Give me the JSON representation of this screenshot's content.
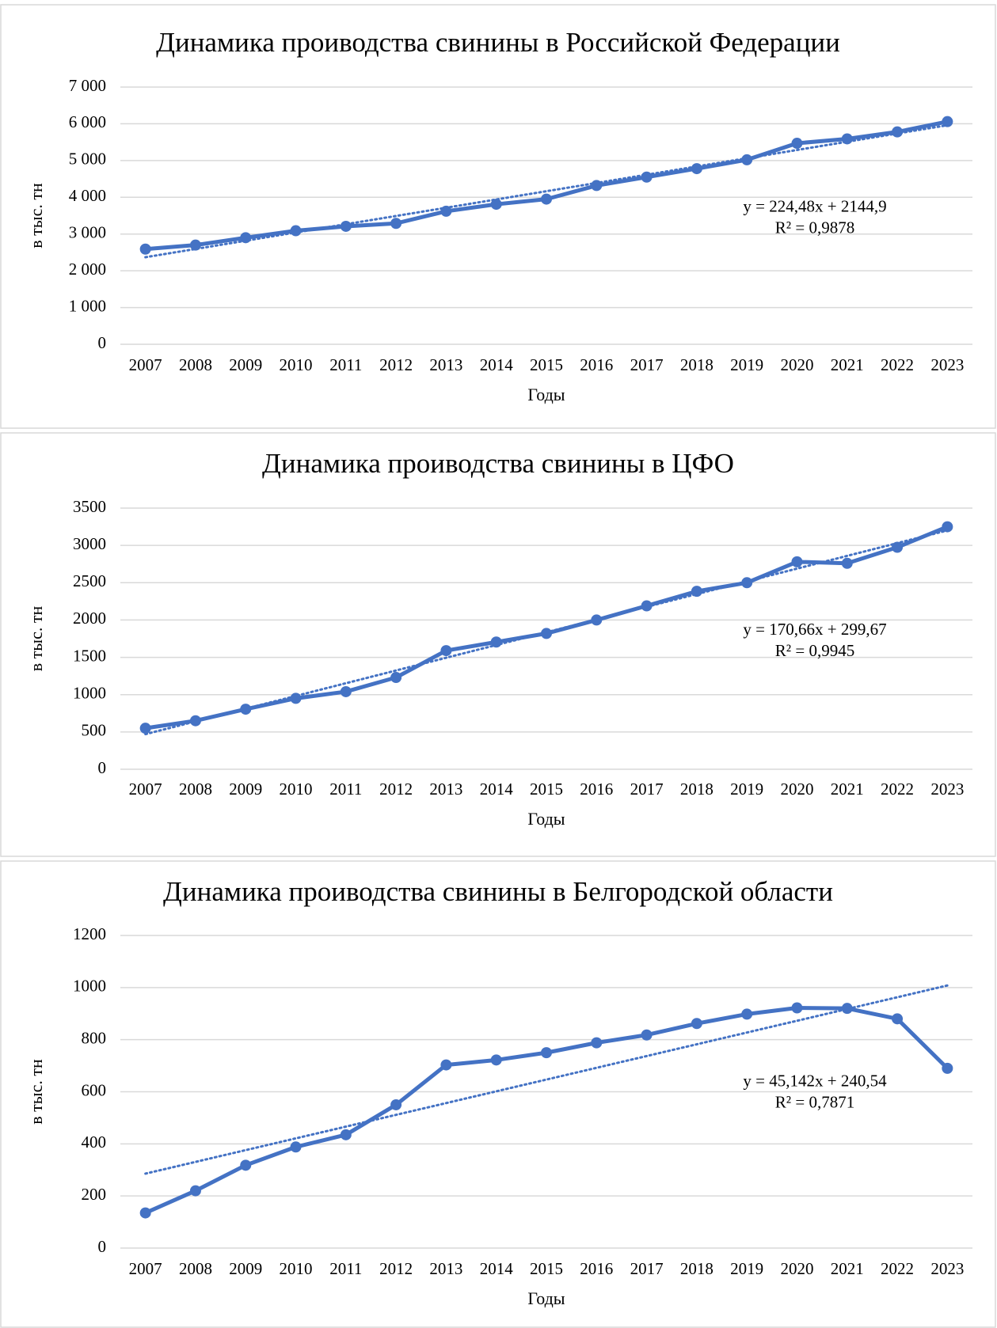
{
  "chart_data": [
    {
      "type": "line",
      "title": "Динамика проиводства свинины в Российской Федерации",
      "x_label": "Годы",
      "y_label": "в тыс. тн",
      "categories": [
        "2007",
        "2008",
        "2009",
        "2010",
        "2011",
        "2012",
        "2013",
        "2014",
        "2015",
        "2016",
        "2017",
        "2018",
        "2019",
        "2020",
        "2021",
        "2022",
        "2023"
      ],
      "series": [
        {
          "name": null,
          "color": "#4472c4",
          "values": [
            2590,
            2700,
            2900,
            3090,
            3210,
            3290,
            3620,
            3810,
            3950,
            4320,
            4550,
            4780,
            5020,
            5470,
            5590,
            5780,
            6060
          ]
        }
      ],
      "trendline": {
        "slope": 224.48,
        "intercept": 2144.9,
        "label": "y = 224,48x + 2144,9",
        "r2": 0.9878,
        "r2_label": "R² = 0,9878"
      },
      "ylim": [
        0,
        7000
      ],
      "yticks": [
        0,
        {
          "value": 1000,
          "label": "1 000"
        },
        {
          "value": 2000,
          "label": "2 000"
        },
        {
          "value": 3000,
          "label": "3 000"
        },
        {
          "value": 4000,
          "label": "4 000"
        },
        {
          "value": 5000,
          "label": "5 000"
        },
        {
          "value": 6000,
          "label": "6 000"
        },
        {
          "value": 7000,
          "label": "7 000"
        }
      ],
      "grid": true
    },
    {
      "type": "line",
      "title": "Динамика проиводства свинины в ЦФО",
      "x_label": "Годы",
      "y_label": "в тыс. тн",
      "categories": [
        "2007",
        "2008",
        "2009",
        "2010",
        "2011",
        "2012",
        "2013",
        "2014",
        "2015",
        "2016",
        "2017",
        "2018",
        "2019",
        "2020",
        "2021",
        "2022",
        "2023"
      ],
      "series": [
        {
          "name": null,
          "color": "#4472c4",
          "values": [
            550,
            650,
            805,
            950,
            1040,
            1230,
            1590,
            1705,
            1820,
            2000,
            2190,
            2385,
            2500,
            2780,
            2760,
            2975,
            3250
          ]
        }
      ],
      "trendline": {
        "slope": 170.66,
        "intercept": 299.67,
        "label": "y = 170,66x + 299,67",
        "r2": 0.9945,
        "r2_label": "R² = 0,9945"
      },
      "ylim": [
        0,
        3500
      ],
      "yticks": [
        0,
        500,
        1000,
        1500,
        2000,
        2500,
        3000,
        3500
      ],
      "grid": true
    },
    {
      "type": "line",
      "title": "Динамика проиводства свинины в Белгородской области",
      "x_label": "Годы",
      "y_label": "в тыс. тн",
      "categories": [
        "2007",
        "2008",
        "2009",
        "2010",
        "2011",
        "2012",
        "2013",
        "2014",
        "2015",
        "2016",
        "2017",
        "2018",
        "2019",
        "2020",
        "2021",
        "2022",
        "2023"
      ],
      "series": [
        {
          "name": null,
          "color": "#4472c4",
          "values": [
            135,
            220,
            318,
            388,
            435,
            550,
            703,
            722,
            750,
            788,
            818,
            862,
            898,
            922,
            920,
            880,
            690
          ]
        }
      ],
      "trendline": {
        "slope": 45.142,
        "intercept": 240.54,
        "label": "y = 45,142x + 240,54",
        "r2": 0.7871,
        "r2_label": "R² = 0,7871"
      },
      "ylim": [
        0,
        1200
      ],
      "yticks": [
        0,
        200,
        400,
        600,
        800,
        1000,
        1200
      ],
      "grid": true
    }
  ]
}
